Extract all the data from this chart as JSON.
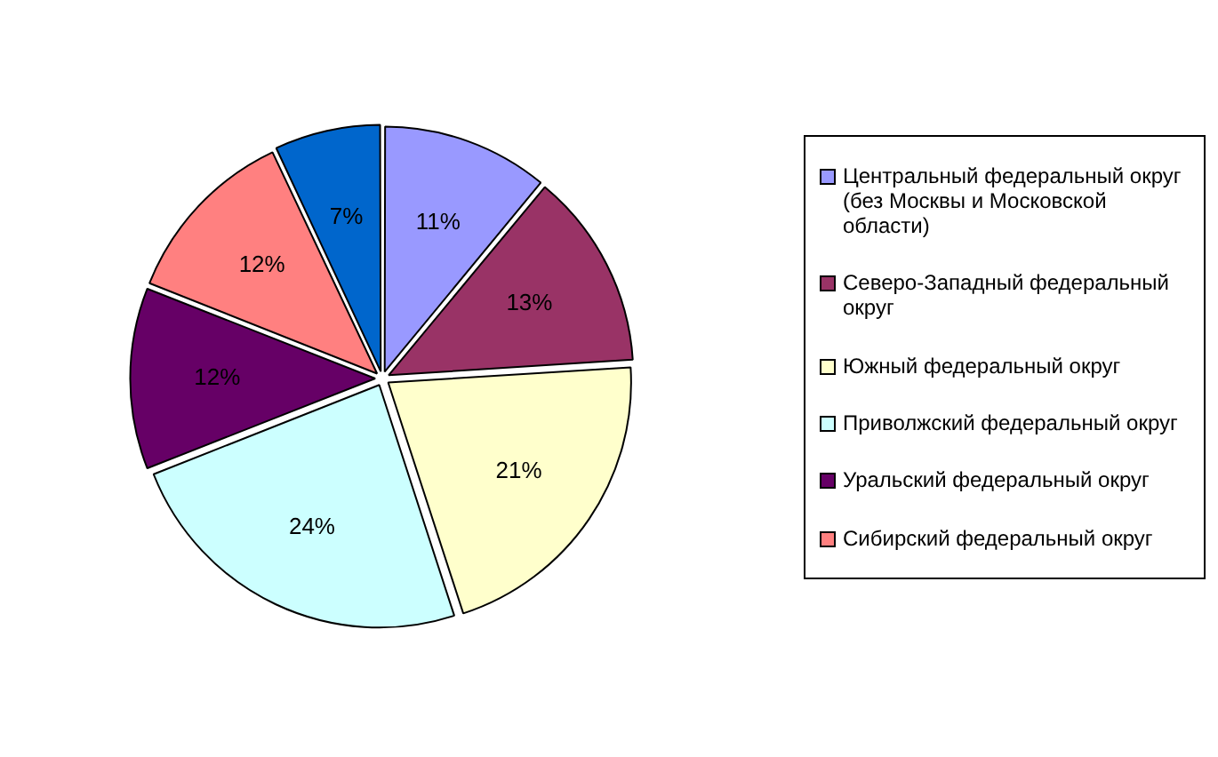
{
  "chart_data": {
    "type": "pie",
    "categories": [
      "Центральный федеральный округ (без Москвы и Московской области)",
      "Северо-Западный федеральный округ",
      "Южный федеральный округ",
      "Приволжский федеральный округ",
      "Уральский федеральный округ",
      "Сибирский федеральный округ",
      null
    ],
    "values": [
      11,
      13,
      21,
      24,
      12,
      12,
      7
    ],
    "value_labels": [
      "11%",
      "13%",
      "21%",
      "24%",
      "12%",
      "12%",
      "7%"
    ],
    "colors": [
      "#9999ff",
      "#993366",
      "#ffffcc",
      "#ccffff",
      "#660066",
      "#ff8080",
      "#0066cc"
    ],
    "legend": "right"
  }
}
